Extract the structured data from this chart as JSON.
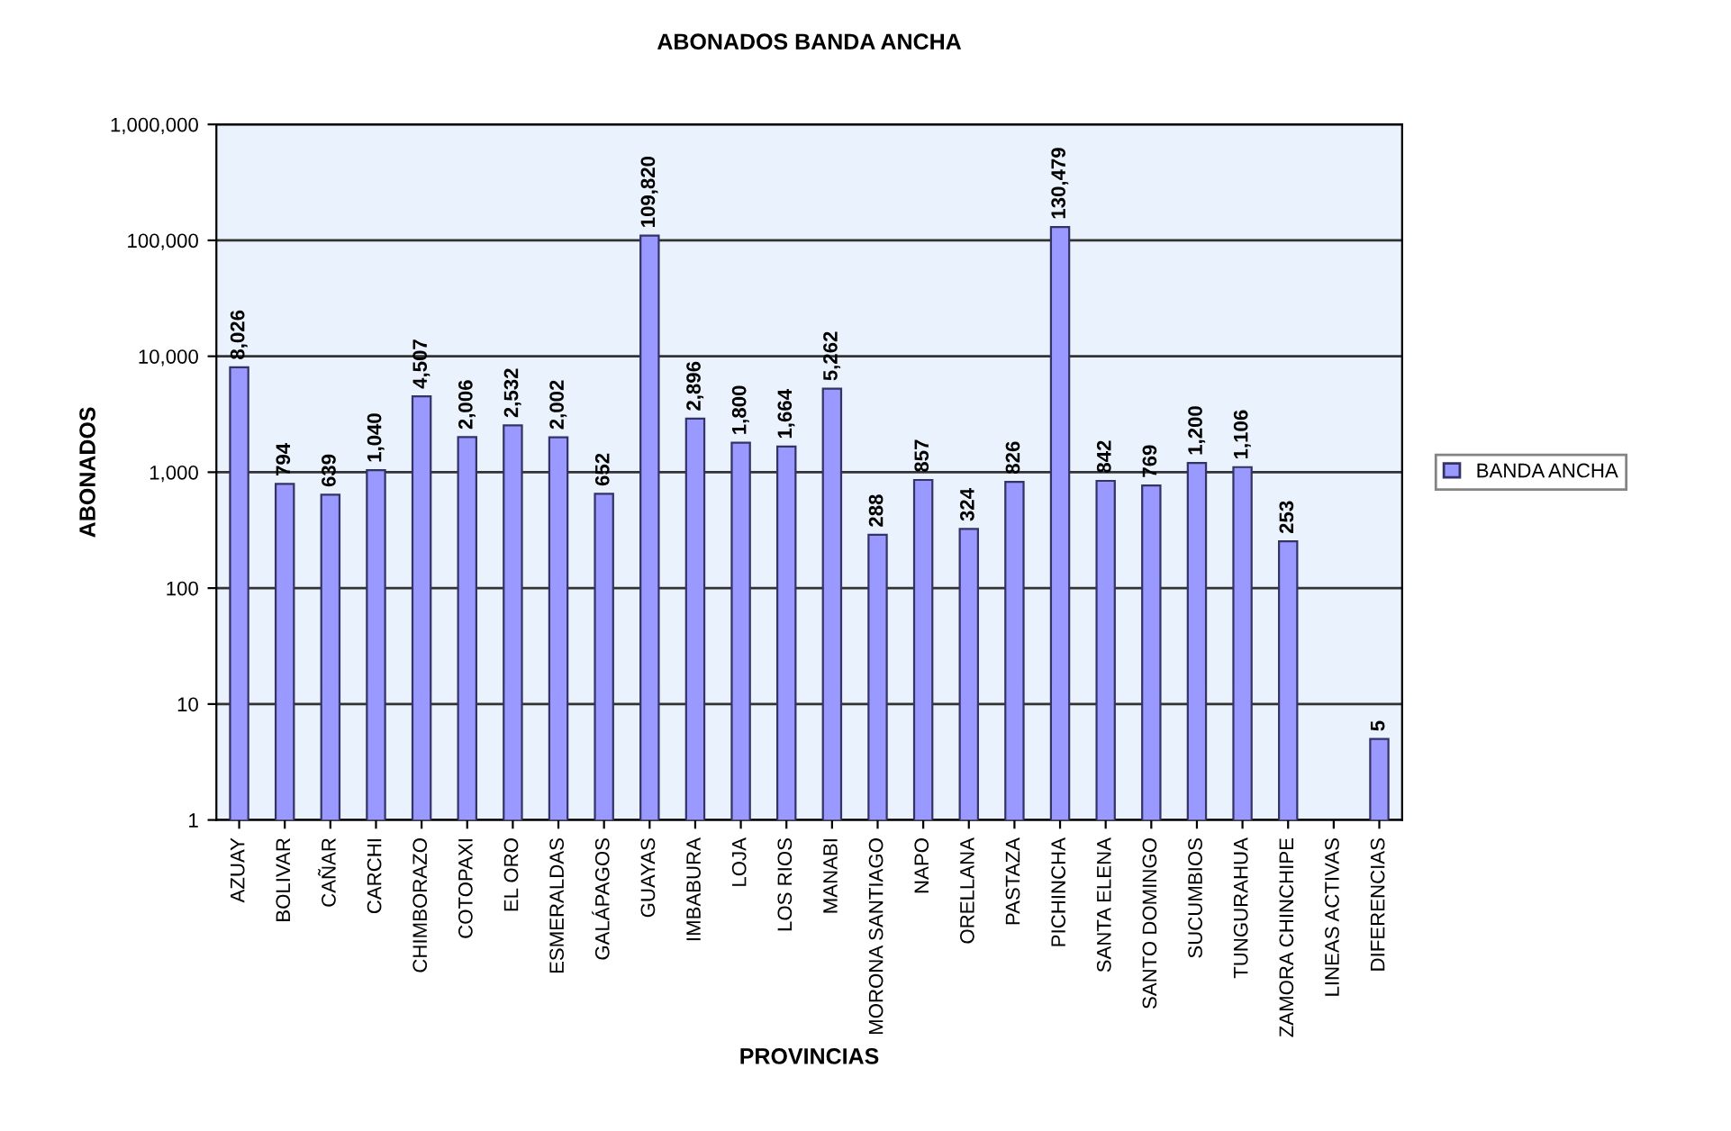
{
  "chart_data": {
    "type": "bar",
    "title": "ABONADOS BANDA ANCHA",
    "xlabel": "PROVINCIAS",
    "ylabel": "ABONADOS",
    "categories": [
      "AZUAY",
      "BOLIVAR",
      "CAÑAR",
      "CARCHI",
      "CHIMBORAZO",
      "COTOPAXI",
      "EL ORO",
      "ESMERALDAS",
      "GALÁPAGOS",
      "GUAYAS",
      "IMBABURA",
      "LOJA",
      "LOS RIOS",
      "MANABI",
      "MORONA SANTIAGO",
      "NAPO",
      "ORELLANA",
      "PASTAZA",
      "PICHINCHA",
      "SANTA ELENA",
      "SANTO DOMINGO",
      "SUCUMBIOS",
      "TUNGURAHUA",
      "ZAMORA CHINCHIPE",
      "LINEAS ACTIVAS",
      "DIFERENCIAS"
    ],
    "series": [
      {
        "name": "BANDA ANCHA",
        "color": "#9999ff",
        "values": [
          8026,
          794,
          639,
          1040,
          4507,
          2006,
          2532,
          2002,
          652,
          109820,
          2896,
          1800,
          1664,
          5262,
          288,
          857,
          324,
          826,
          130479,
          842,
          769,
          1200,
          1106,
          253,
          null,
          5
        ],
        "value_labels": [
          "8,026",
          "794",
          "639",
          "1,040",
          "4,507",
          "2,006",
          "2,532",
          "2,002",
          "652",
          "109,820",
          "2,896",
          "1,800",
          "1,664",
          "5,262",
          "288",
          "857",
          "324",
          "826",
          "130,479",
          "842",
          "769",
          "1,200",
          "1,106",
          "253",
          null,
          "5"
        ]
      }
    ],
    "log": true,
    "ylim": [
      1,
      1000000
    ],
    "yticks": [
      {
        "value": 1,
        "label": "1"
      },
      {
        "value": 10,
        "label": "10"
      },
      {
        "value": 100,
        "label": "100"
      },
      {
        "value": 1000,
        "label": "1,000"
      },
      {
        "value": 10000,
        "label": "10,000"
      },
      {
        "value": 100000,
        "label": "100,000"
      },
      {
        "value": 1000000,
        "label": "1,000,000"
      }
    ],
    "grid": "y",
    "legend": "right"
  }
}
